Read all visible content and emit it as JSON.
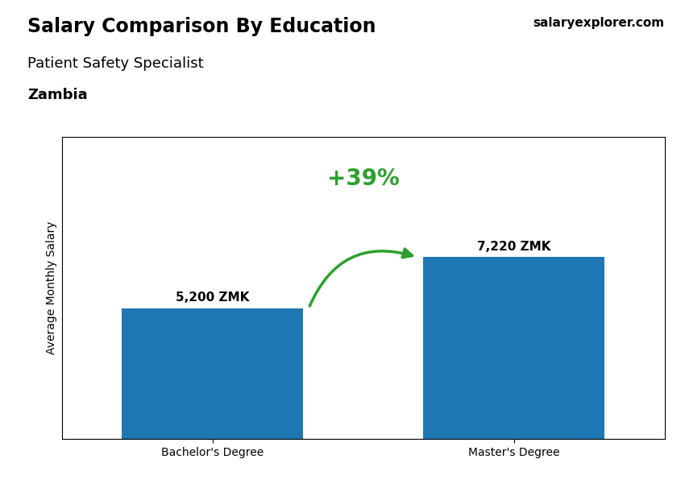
{
  "chart_data": {
    "type": "bar",
    "title": "Salary Comparison By Education",
    "subtitle": "Patient Safety Specialist",
    "annotations": [
      "Zambia",
      "+39%",
      "salaryexplorer.com"
    ],
    "categories": [
      "Bachelor's Degree",
      "Master's Degree"
    ],
    "values": [
      5200,
      7220
    ],
    "value_labels": [
      "5,200 ZMK",
      "7,220 ZMK"
    ],
    "data_labels": true,
    "ylabel": "Average Monthly Salary",
    "ylim": [
      0,
      12000
    ],
    "tick_labels": "x",
    "grid": false
  }
}
